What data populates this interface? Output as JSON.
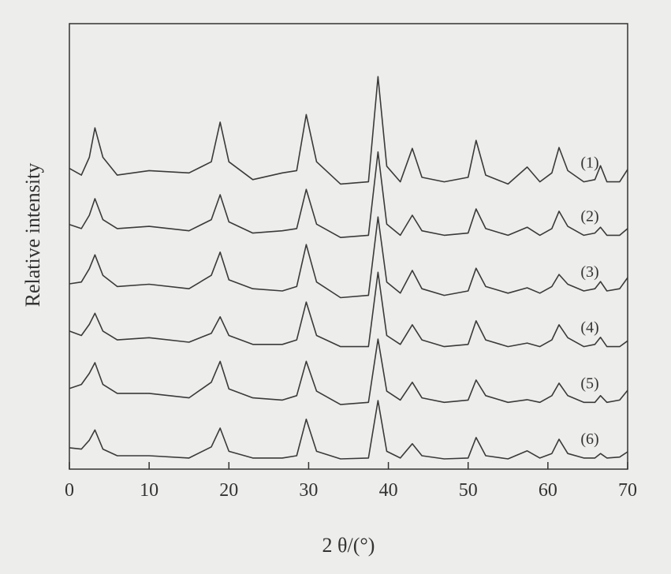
{
  "chart_data": {
    "type": "line",
    "xlabel": "2 θ/(°)",
    "ylabel": "Relative intensity",
    "x": [
      0,
      1.5,
      2.5,
      3.2,
      4.2,
      6,
      10,
      15,
      17.8,
      18.9,
      20,
      23,
      26.7,
      28.5,
      29.7,
      31,
      34,
      37.5,
      38.7,
      39.8,
      41.5,
      43,
      44.2,
      47,
      50,
      51,
      52.2,
      55,
      57.4,
      59,
      60.5,
      61.4,
      62.5,
      64.5,
      65.9,
      66.6,
      67.4,
      69,
      70
    ],
    "xlim": [
      0,
      70
    ],
    "xticks": [
      0,
      10,
      20,
      30,
      40,
      50,
      60,
      70
    ],
    "ylim": [
      0,
      100
    ],
    "series": [
      {
        "name": "(1)",
        "color": "#3a3a3a",
        "values": [
          67.5,
          66,
          70,
          76.6,
          70,
          66,
          67,
          66.5,
          69,
          77.9,
          69,
          65,
          66.5,
          67,
          79.6,
          69,
          64,
          64.5,
          88.1,
          68,
          64.5,
          72,
          65.5,
          64.5,
          65.5,
          73.8,
          66,
          64,
          67.8,
          64.5,
          66.5,
          72.2,
          67,
          64.5,
          65,
          68.1,
          64.5,
          64.5,
          67.3
        ]
      },
      {
        "name": "(2)",
        "color": "#3a3a3a",
        "values": [
          54.9,
          54,
          57,
          60.7,
          56,
          54,
          54.5,
          53.5,
          56,
          61.6,
          55.5,
          53,
          53.5,
          54,
          62.8,
          55,
          52,
          52.5,
          71.2,
          55,
          52.5,
          57,
          53.5,
          52.5,
          53,
          58.4,
          54,
          52.5,
          54.3,
          52.5,
          54,
          57.9,
          54.5,
          52.5,
          53,
          54.3,
          52.5,
          52.5,
          54
        ]
      },
      {
        "name": "(3)",
        "color": "#3a3a3a",
        "values": [
          41.6,
          42,
          45,
          48.1,
          43.5,
          41,
          41.5,
          40.5,
          43.5,
          48.7,
          42.5,
          40.5,
          40,
          41,
          50.4,
          42,
          38.5,
          39,
          56.6,
          42,
          39.5,
          44.6,
          40.5,
          39,
          40,
          45.1,
          41,
          39.5,
          40.7,
          39.5,
          41,
          43.7,
          41.5,
          40,
          40.5,
          42.1,
          40,
          40.5,
          43
        ]
      },
      {
        "name": "(4)",
        "color": "#3a3a3a",
        "values": [
          31,
          30,
          32.5,
          35,
          31,
          29,
          29.5,
          28.5,
          30.5,
          34.2,
          30,
          28,
          28,
          29,
          37.5,
          30,
          27.5,
          27.5,
          44.2,
          30,
          28,
          32.4,
          29,
          27.5,
          28,
          33.3,
          29,
          27.5,
          28.3,
          27.5,
          29,
          32.4,
          29.5,
          27.5,
          28,
          29.6,
          27.5,
          27.5,
          28.8
        ]
      },
      {
        "name": "(5)",
        "color": "#3a3a3a",
        "values": [
          18.1,
          19,
          21.5,
          23.9,
          19,
          17,
          17,
          16,
          19.5,
          24.2,
          18,
          16,
          15.5,
          16.5,
          24.2,
          17.5,
          14.5,
          15,
          29.2,
          17.5,
          15.5,
          19.5,
          16,
          15,
          15.5,
          20,
          16.5,
          15,
          15.6,
          15,
          16.5,
          19.3,
          16.5,
          15,
          15,
          16.5,
          15,
          15.5,
          17.7
        ]
      },
      {
        "name": "(6)",
        "color": "#3a3a3a",
        "values": [
          4.8,
          4.5,
          6.5,
          8.8,
          4.5,
          3,
          3,
          2.5,
          5,
          9.2,
          4,
          2.5,
          2.5,
          3,
          11.2,
          4,
          2.3,
          2.5,
          15.4,
          4,
          2.5,
          5.7,
          3,
          2.3,
          2.5,
          7.1,
          3,
          2.3,
          4.1,
          2.5,
          3.5,
          6.7,
          3.5,
          2.5,
          2.5,
          3.5,
          2.5,
          2.7,
          3.9
        ]
      }
    ]
  }
}
